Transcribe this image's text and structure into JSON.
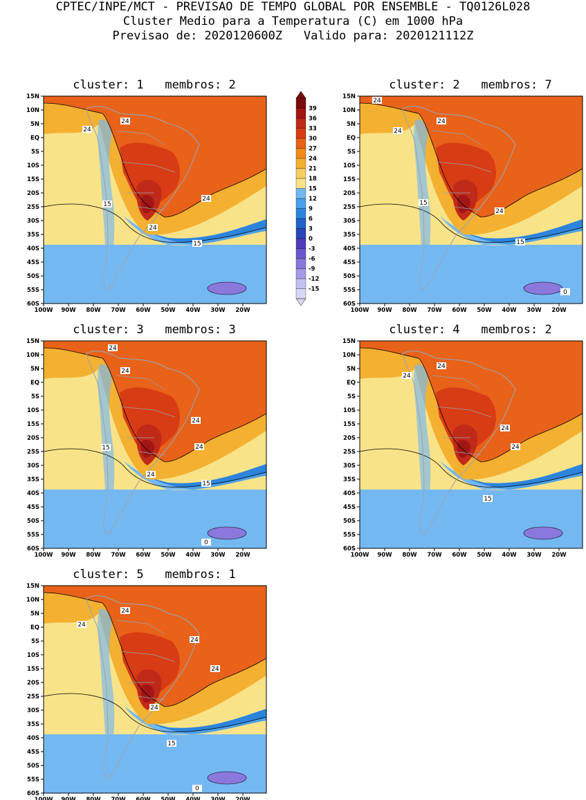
{
  "header": {
    "line1": "CPTEC/INPE/MCT - PREVISAO DE TEMPO GLOBAL POR ENSEMBLE - TQ0126L028",
    "line2": "Cluster Medio para a Temperatura (C) em 1000 hPa",
    "line3": "Previsao de: 2020120600Z   Valido para: 2020121112Z"
  },
  "lat_labels": [
    "15N",
    "10N",
    "5N",
    "EQ",
    "5S",
    "10S",
    "15S",
    "20S",
    "25S",
    "30S",
    "35S",
    "40S",
    "45S",
    "50S",
    "55S",
    "60S"
  ],
  "lon_labels": [
    "100W",
    "90W",
    "80W",
    "70W",
    "60W",
    "50W",
    "40W",
    "30W",
    "20W"
  ],
  "colorbar": {
    "labels": [
      "39",
      "36",
      "33",
      "30",
      "27",
      "24",
      "21",
      "18",
      "15",
      "12",
      "9",
      "6",
      "3",
      "0",
      "-3",
      "-6",
      "-9",
      "-12",
      "-15"
    ],
    "colors": [
      "#d8d8f6",
      "#c2c2f0",
      "#a69ae8",
      "#8a78dc",
      "#6d57cc",
      "#4e3cbb",
      "#2846b6",
      "#1e63c8",
      "#2c84dc",
      "#4aa0ea",
      "#74b8f2",
      "#f9e389",
      "#f5cd60",
      "#f4b030",
      "#f08a1a",
      "#e8621a",
      "#d83c14",
      "#c02a18",
      "#a21616",
      "#7a0c0c"
    ]
  },
  "clusters": [
    {
      "title": "cluster: 1   membros: 2",
      "contour_labels": [
        "24",
        "24",
        "24",
        "15",
        "24",
        "15"
      ]
    },
    {
      "title": "cluster: 2   membros: 7",
      "contour_labels": [
        "24",
        "24",
        "24",
        "15",
        "24",
        "15",
        "0"
      ]
    },
    {
      "title": "cluster: 3   membros: 3",
      "contour_labels": [
        "24",
        "24",
        "24",
        "15",
        "24",
        "24",
        "15",
        "0"
      ]
    },
    {
      "title": "cluster: 4   membros: 2",
      "contour_labels": [
        "24",
        "24",
        "24",
        "24",
        "15"
      ]
    },
    {
      "title": "cluster: 5   membros: 1",
      "contour_labels": [
        "24",
        "24",
        "24",
        "24",
        "24",
        "15",
        "0"
      ]
    }
  ]
}
